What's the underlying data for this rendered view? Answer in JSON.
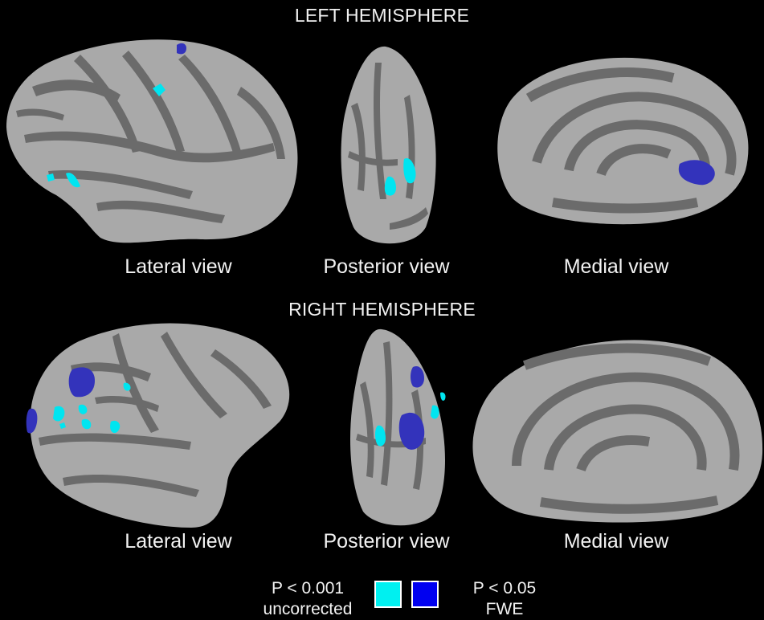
{
  "sections": {
    "left": {
      "title": "LEFT HEMISPHERE"
    },
    "right": {
      "title": "RIGHT HEMISPHERE"
    }
  },
  "views": {
    "lateral": "Lateral view",
    "posterior": "Posterior view",
    "medial": "Medial view"
  },
  "legend": {
    "uncorrected": {
      "line1": "P < 0.001",
      "line2": "uncorrected",
      "color": "#00f0f0"
    },
    "fwe": {
      "line1": "P < 0.05",
      "line2": "FWE",
      "color": "#0000f0"
    }
  },
  "colors": {
    "background": "#000000",
    "gyri": "#a9a9a9",
    "sulci": "#6b6b6b",
    "cluster_uncorrected": "#00e5f0",
    "cluster_fwe": "#3333bb"
  }
}
